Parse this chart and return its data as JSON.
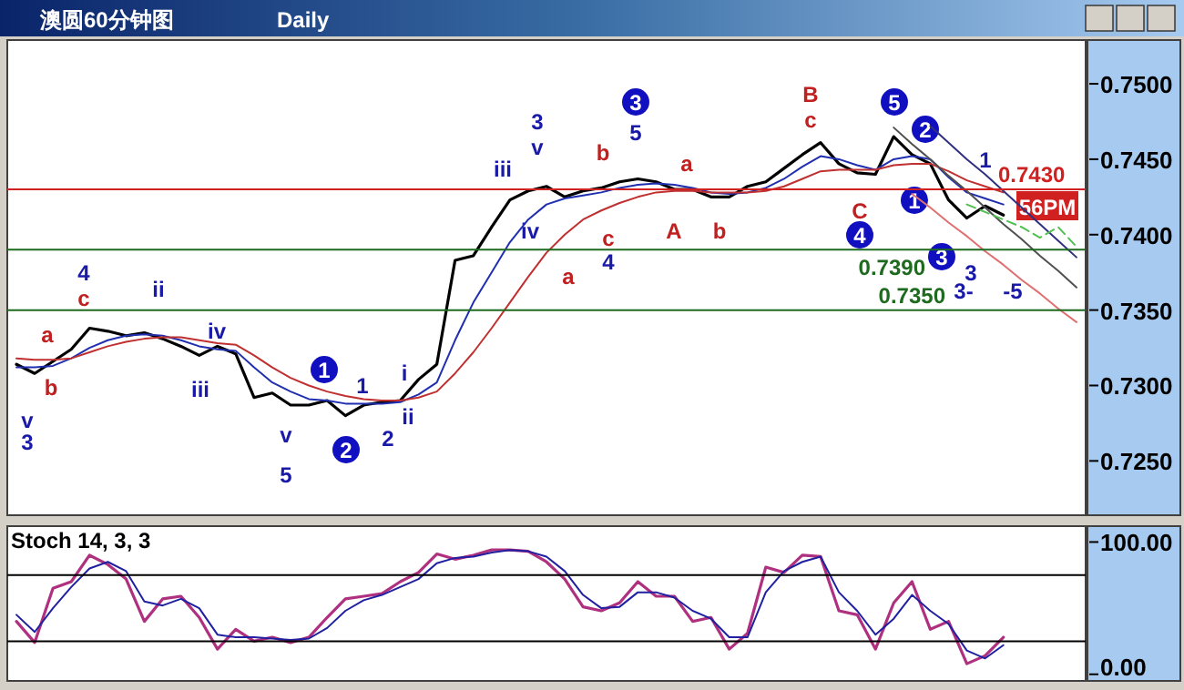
{
  "chart_data": [
    {
      "type": "line",
      "title": "澳圆60分钟图",
      "subtitle": "Daily",
      "categories": [
        null,
        null,
        null,
        null,
        null,
        null,
        null,
        null,
        null,
        null,
        null,
        null,
        null,
        null,
        null,
        null,
        null,
        null,
        null,
        null,
        null,
        null,
        null,
        null,
        null,
        null,
        null,
        null,
        null,
        null,
        null,
        null,
        null,
        null,
        null,
        null,
        null,
        null,
        null,
        null,
        null,
        null,
        null,
        null,
        null,
        null,
        null,
        null,
        null,
        null,
        null,
        null,
        null,
        null,
        null,
        null,
        null,
        null,
        null
      ],
      "ylim": [
        0.7214,
        0.7529
      ],
      "yticks": [
        {
          "value": 0.725,
          "label": "0.7250"
        },
        {
          "value": 0.73,
          "label": "0.7300"
        },
        {
          "value": 0.735,
          "label": "0.7350"
        },
        {
          "value": 0.74,
          "label": "0.7400"
        },
        {
          "value": 0.745,
          "label": "0.7450"
        },
        {
          "value": 0.75,
          "label": "0.7500"
        }
      ],
      "series": [
        {
          "color": "#000000",
          "values": [
            0.7314,
            0.7308,
            0.7316,
            0.7324,
            0.7338,
            0.7336,
            0.7333,
            0.7335,
            0.7331,
            0.7326,
            0.732,
            0.7326,
            0.7321,
            0.7292,
            0.7295,
            0.7287,
            0.7287,
            0.729,
            0.728,
            0.7287,
            0.7289,
            0.729,
            0.7304,
            0.7314,
            0.7383,
            0.7386,
            0.7405,
            0.7423,
            0.7429,
            0.7432,
            0.7425,
            0.7429,
            0.7431,
            0.7435,
            0.7437,
            0.7435,
            0.743,
            0.743,
            0.7425,
            0.7425,
            0.7432,
            0.7435,
            0.7444,
            0.7453,
            0.7461,
            0.7447,
            0.7441,
            0.744,
            0.7465,
            0.7453,
            0.7447,
            0.7423,
            0.7411,
            0.7419,
            0.7413,
            null,
            null,
            null,
            null
          ]
        },
        {
          "color": "#1f2fb0",
          "values": [
            0.7312,
            0.7312,
            0.7313,
            0.7318,
            0.7325,
            0.733,
            0.7333,
            0.7334,
            0.7333,
            0.733,
            0.7326,
            0.7324,
            0.7323,
            0.7312,
            0.7302,
            0.7296,
            0.7291,
            0.729,
            0.7288,
            0.7288,
            0.7288,
            0.7289,
            0.7294,
            0.7302,
            0.733,
            0.7355,
            0.7375,
            0.7395,
            0.741,
            0.742,
            0.7424,
            0.7426,
            0.7428,
            0.7431,
            0.7433,
            0.7434,
            0.7433,
            0.7431,
            0.7428,
            0.7427,
            0.7428,
            0.7431,
            0.7437,
            0.7445,
            0.7452,
            0.745,
            0.7446,
            0.7443,
            0.745,
            0.7452,
            0.745,
            0.7438,
            0.7428,
            0.7424,
            0.742,
            null,
            null,
            null,
            null
          ]
        },
        {
          "color": "#c03030",
          "values": [
            0.7318,
            0.7317,
            0.7317,
            0.7318,
            0.7322,
            0.7326,
            0.7329,
            0.7331,
            0.7332,
            0.7332,
            0.733,
            0.7328,
            0.7327,
            0.732,
            0.7312,
            0.7305,
            0.73,
            0.7296,
            0.7293,
            0.7291,
            0.729,
            0.729,
            0.7292,
            0.7296,
            0.7308,
            0.7322,
            0.7338,
            0.7355,
            0.7372,
            0.7388,
            0.74,
            0.741,
            0.7416,
            0.7421,
            0.7425,
            0.7428,
            0.7429,
            0.7429,
            0.7428,
            0.7428,
            0.7428,
            0.7429,
            0.7432,
            0.7437,
            0.7442,
            0.7443,
            0.7443,
            0.7443,
            0.7446,
            0.7447,
            0.7447,
            0.7442,
            0.7436,
            0.7432,
            0.7428,
            null,
            null,
            null,
            null
          ]
        },
        {
          "color": "#505050",
          "values": [
            null,
            null,
            null,
            null,
            null,
            null,
            null,
            null,
            null,
            null,
            null,
            null,
            null,
            null,
            null,
            null,
            null,
            null,
            null,
            null,
            null,
            null,
            null,
            null,
            null,
            null,
            null,
            null,
            null,
            null,
            null,
            null,
            null,
            null,
            null,
            null,
            null,
            null,
            null,
            null,
            null,
            null,
            null,
            null,
            null,
            null,
            null,
            null,
            0.7471,
            0.746,
            0.745,
            0.7439,
            0.7429,
            0.7418,
            0.7407,
            0.7397,
            0.7386,
            0.7376,
            0.7365
          ]
        },
        {
          "color": "#303080",
          "values": [
            null,
            null,
            null,
            null,
            null,
            null,
            null,
            null,
            null,
            null,
            null,
            null,
            null,
            null,
            null,
            null,
            null,
            null,
            null,
            null,
            null,
            null,
            null,
            null,
            null,
            null,
            null,
            null,
            null,
            null,
            null,
            null,
            null,
            null,
            null,
            null,
            null,
            null,
            null,
            null,
            null,
            null,
            null,
            null,
            null,
            null,
            null,
            null,
            null,
            null,
            0.7472,
            0.7461,
            0.745,
            0.744,
            0.7429,
            0.7418,
            0.7407,
            0.7396,
            0.7385
          ]
        },
        {
          "color": "#e07070",
          "values": [
            null,
            null,
            null,
            null,
            null,
            null,
            null,
            null,
            null,
            null,
            null,
            null,
            null,
            null,
            null,
            null,
            null,
            null,
            null,
            null,
            null,
            null,
            null,
            null,
            null,
            null,
            null,
            null,
            null,
            null,
            null,
            null,
            null,
            null,
            null,
            null,
            null,
            null,
            null,
            null,
            null,
            null,
            null,
            null,
            null,
            null,
            null,
            null,
            null,
            0.7427,
            0.7418,
            0.7408,
            0.7399,
            0.7389,
            0.738,
            0.737,
            0.7361,
            0.7351,
            0.7342
          ]
        },
        {
          "color": "#50c050",
          "line_style": "dashed",
          "values": [
            null,
            null,
            null,
            null,
            null,
            null,
            null,
            null,
            null,
            null,
            null,
            null,
            null,
            null,
            null,
            null,
            null,
            null,
            null,
            null,
            null,
            null,
            null,
            null,
            null,
            null,
            null,
            null,
            null,
            null,
            null,
            null,
            null,
            null,
            null,
            null,
            null,
            null,
            null,
            null,
            null,
            null,
            null,
            null,
            null,
            null,
            null,
            null,
            null,
            null,
            null,
            null,
            0.742,
            0.7415,
            0.741,
            0.7405,
            0.7398,
            0.7405,
            0.7392
          ]
        }
      ],
      "ref_lines": [
        {
          "axis": "y",
          "value": 0.743,
          "label": "0.7430",
          "color": "#d02020"
        },
        {
          "axis": "y",
          "value": 0.739,
          "label": "0.7390",
          "color": "#1e6a1e"
        },
        {
          "axis": "y",
          "value": 0.735,
          "label": "0.7350",
          "color": "#1e6a1e"
        }
      ],
      "annotations": [
        "v",
        "3",
        "b",
        "a",
        "4",
        "c",
        "ii",
        "iv",
        "iii",
        "v",
        "5",
        "1",
        "2",
        "1",
        "2",
        "i",
        "ii",
        "3",
        "v",
        "iii",
        "iv",
        "a",
        "b",
        "c",
        "4",
        "3",
        "5",
        "a",
        "A",
        "b",
        "B",
        "c",
        "C",
        "4",
        "5",
        "2",
        "1",
        "3",
        "3",
        "1",
        "3-",
        "-5",
        "56PM"
      ]
    },
    {
      "type": "line",
      "title": "Stoch 14, 3, 3",
      "categories": [
        null,
        null,
        null,
        null,
        null,
        null,
        null,
        null,
        null,
        null,
        null,
        null,
        null,
        null,
        null,
        null,
        null,
        null,
        null,
        null,
        null,
        null,
        null,
        null,
        null,
        null,
        null,
        null,
        null,
        null,
        null,
        null,
        null,
        null,
        null,
        null,
        null,
        null,
        null,
        null,
        null,
        null,
        null,
        null,
        null,
        null,
        null,
        null,
        null,
        null,
        null,
        null,
        null,
        null,
        null,
        null,
        null,
        null,
        null
      ],
      "ylim": [
        -5,
        112
      ],
      "yticks": [
        {
          "value": 0,
          "label": "0.00"
        },
        {
          "value": 100,
          "label": "100.00"
        }
      ],
      "series": [
        {
          "color": "#b03080",
          "values": [
            40,
            24,
            65,
            70,
            90,
            83,
            72,
            40,
            57,
            59,
            43,
            19,
            34,
            25,
            28,
            24,
            28,
            43,
            57,
            59,
            61,
            70,
            77,
            91,
            87,
            90,
            94,
            94,
            93,
            85,
            72,
            51,
            48,
            54,
            70,
            59,
            59,
            40,
            43,
            19,
            31,
            81,
            77,
            90,
            89,
            48,
            45,
            19,
            54,
            70,
            34,
            40,
            8,
            14,
            28,
            null,
            null,
            null,
            null
          ]
        },
        {
          "color": "#2020a0",
          "values": [
            45,
            32,
            50,
            66,
            80,
            85,
            78,
            55,
            52,
            57,
            50,
            30,
            28,
            28,
            27,
            26,
            27,
            35,
            48,
            56,
            60,
            66,
            72,
            84,
            88,
            89,
            92,
            94,
            93,
            89,
            78,
            60,
            50,
            51,
            62,
            62,
            58,
            48,
            42,
            28,
            28,
            62,
            78,
            85,
            89,
            62,
            48,
            30,
            42,
            60,
            48,
            38,
            18,
            12,
            22,
            null,
            null,
            null,
            null
          ]
        }
      ],
      "ref_lines": [
        {
          "axis": "y",
          "value": 75,
          "color": "#000000"
        },
        {
          "axis": "y",
          "value": 25,
          "color": "#000000"
        }
      ]
    }
  ]
}
